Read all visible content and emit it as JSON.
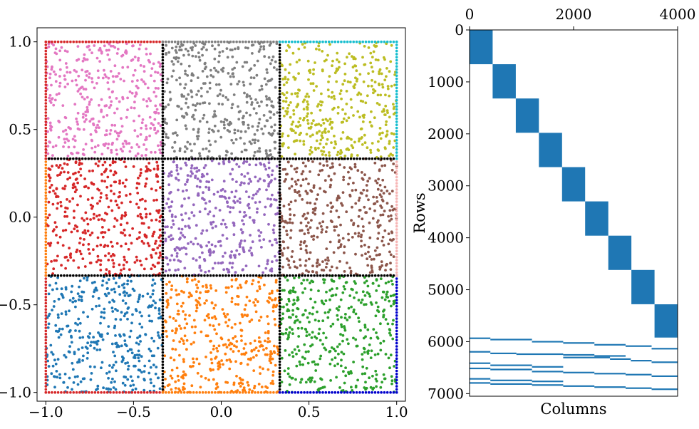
{
  "chart_data": [
    {
      "type": "scatter",
      "title": "",
      "xlabel": "",
      "ylabel": "",
      "xlim": [
        -1.05,
        1.05
      ],
      "ylim": [
        -1.05,
        1.08
      ],
      "x_ticks": [
        -1.0,
        -0.5,
        0.0,
        0.5,
        1.0
      ],
      "x_tick_labels": [
        "−1.0",
        "−0.5",
        "0.0",
        "0.5",
        "1.0"
      ],
      "y_ticks": [
        -1.0,
        -0.5,
        0.0,
        0.5,
        1.0
      ],
      "y_tick_labels": [
        "−1.0",
        "−0.5",
        "0.0",
        "0.5",
        "1.0"
      ],
      "grid": false,
      "subdomain_boundaries": [
        -0.3333,
        0.3333
      ],
      "points_per_subdomain": 400,
      "interface_color": "#000000",
      "subdomains": [
        {
          "name": "bottom-left",
          "x": [
            -1.0,
            -0.3333
          ],
          "y": [
            -1.0,
            -0.3333
          ],
          "color": "#1f77b4"
        },
        {
          "name": "bottom-center",
          "x": [
            -0.3333,
            0.3333
          ],
          "y": [
            -1.0,
            -0.3333
          ],
          "color": "#ff7f0e"
        },
        {
          "name": "bottom-right",
          "x": [
            0.3333,
            1.0
          ],
          "y": [
            -1.0,
            -0.3333
          ],
          "color": "#2ca02c"
        },
        {
          "name": "middle-left",
          "x": [
            -1.0,
            -0.3333
          ],
          "y": [
            -0.3333,
            0.3333
          ],
          "color": "#d62728"
        },
        {
          "name": "middle-center",
          "x": [
            -0.3333,
            0.3333
          ],
          "y": [
            -0.3333,
            0.3333
          ],
          "color": "#9467bd"
        },
        {
          "name": "middle-right",
          "x": [
            0.3333,
            1.0
          ],
          "y": [
            -0.3333,
            0.3333
          ],
          "color": "#8c564b"
        },
        {
          "name": "top-left",
          "x": [
            -1.0,
            -0.3333
          ],
          "y": [
            0.3333,
            1.0
          ],
          "color": "#e377c2"
        },
        {
          "name": "top-center",
          "x": [
            -0.3333,
            0.3333
          ],
          "y": [
            0.3333,
            1.0
          ],
          "color": "#7f7f7f"
        },
        {
          "name": "top-right",
          "x": [
            0.3333,
            1.0
          ],
          "y": [
            0.3333,
            1.0
          ],
          "color": "#bcbd22"
        }
      ],
      "boundary_segments": [
        {
          "edge": "bottom",
          "range": [
            -1.0,
            -0.3333
          ],
          "color": "#d62728"
        },
        {
          "edge": "bottom",
          "range": [
            -0.3333,
            0.3333
          ],
          "color": "#ff7f0e"
        },
        {
          "edge": "bottom",
          "range": [
            0.3333,
            1.0
          ],
          "color": "#0000cc"
        },
        {
          "edge": "top",
          "range": [
            -1.0,
            -0.3333
          ],
          "color": "#d62728"
        },
        {
          "edge": "top",
          "range": [
            -0.3333,
            0.3333
          ],
          "color": "#7f7f7f"
        },
        {
          "edge": "top",
          "range": [
            0.3333,
            1.0
          ],
          "color": "#17becf"
        },
        {
          "edge": "left",
          "range": [
            -1.0,
            -0.3333
          ],
          "color": "#d62728"
        },
        {
          "edge": "left",
          "range": [
            -0.3333,
            0.3333
          ],
          "color": "#ff7f0e"
        },
        {
          "edge": "left",
          "range": [
            0.3333,
            1.0
          ],
          "color": "#d62728"
        },
        {
          "edge": "right",
          "range": [
            -1.0,
            -0.3333
          ],
          "color": "#0000cc"
        },
        {
          "edge": "right",
          "range": [
            -0.3333,
            0.3333
          ],
          "color": "#f7b6b6"
        },
        {
          "edge": "right",
          "range": [
            0.3333,
            1.0
          ],
          "color": "#17becf"
        }
      ]
    },
    {
      "type": "heatmap",
      "subtype": "sparsity-pattern",
      "title": "",
      "xlabel": "Columns",
      "ylabel": "Rows",
      "xlim": [
        0,
        4000
      ],
      "ylim": [
        7050,
        0
      ],
      "x_ticks": [
        0,
        2000,
        4000
      ],
      "x_tick_labels": [
        "0",
        "2000",
        "4000"
      ],
      "y_ticks": [
        0,
        1000,
        2000,
        3000,
        4000,
        5000,
        6000,
        7000
      ],
      "y_tick_labels": [
        "0",
        "1000",
        "2000",
        "3000",
        "4000",
        "5000",
        "6000",
        "7000"
      ],
      "color": "#1f77b4",
      "diagonal_blocks": [
        {
          "rows": [
            0,
            660
          ],
          "cols": [
            0,
            444
          ]
        },
        {
          "rows": [
            660,
            1320
          ],
          "cols": [
            444,
            889
          ]
        },
        {
          "rows": [
            1320,
            1980
          ],
          "cols": [
            889,
            1333
          ]
        },
        {
          "rows": [
            1980,
            2640
          ],
          "cols": [
            1333,
            1778
          ]
        },
        {
          "rows": [
            2640,
            3300
          ],
          "cols": [
            1778,
            2222
          ]
        },
        {
          "rows": [
            3300,
            3960
          ],
          "cols": [
            2222,
            2667
          ]
        },
        {
          "rows": [
            3960,
            4620
          ],
          "cols": [
            2667,
            3111
          ]
        },
        {
          "rows": [
            4620,
            5280
          ],
          "cols": [
            3111,
            3556
          ]
        },
        {
          "rows": [
            5280,
            5920
          ],
          "cols": [
            3556,
            4000
          ]
        }
      ],
      "interface_row_bands": [
        {
          "rows": [
            5920,
            5950
          ],
          "cols": [
            0,
            400
          ]
        },
        {
          "rows": [
            5945,
            5975
          ],
          "cols": [
            400,
            1200
          ]
        },
        {
          "rows": [
            5985,
            6015
          ],
          "cols": [
            1200,
            1800
          ]
        },
        {
          "rows": [
            6010,
            6040
          ],
          "cols": [
            1800,
            2400
          ]
        },
        {
          "rows": [
            6045,
            6075
          ],
          "cols": [
            2400,
            3000
          ]
        },
        {
          "rows": [
            6070,
            6100
          ],
          "cols": [
            3000,
            3500
          ]
        },
        {
          "rows": [
            6120,
            6150
          ],
          "cols": [
            3500,
            4000
          ]
        },
        {
          "rows": [
            6180,
            6210
          ],
          "cols": [
            0,
            400
          ]
        },
        {
          "rows": [
            6210,
            6240
          ],
          "cols": [
            400,
            900
          ]
        },
        {
          "rows": [
            6225,
            6255
          ],
          "cols": [
            900,
            1800
          ]
        },
        {
          "rows": [
            6240,
            6270
          ],
          "cols": [
            1800,
            2400
          ]
        },
        {
          "rows": [
            6260,
            6290
          ],
          "cols": [
            2400,
            3000
          ]
        },
        {
          "rows": [
            6320,
            6350
          ],
          "cols": [
            2700,
            3100
          ]
        },
        {
          "rows": [
            6350,
            6380
          ],
          "cols": [
            3100,
            3500
          ]
        },
        {
          "rows": [
            6380,
            6410
          ],
          "cols": [
            3500,
            4000
          ]
        },
        {
          "rows": [
            6290,
            6320
          ],
          "cols": [
            1800,
            2700
          ]
        },
        {
          "rows": [
            6400,
            6430
          ],
          "cols": [
            0,
            400
          ]
        },
        {
          "rows": [
            6440,
            6470
          ],
          "cols": [
            400,
            1200
          ]
        },
        {
          "rows": [
            6470,
            6500
          ],
          "cols": [
            1200,
            1800
          ]
        },
        {
          "rows": [
            6500,
            6530
          ],
          "cols": [
            0,
            400
          ]
        },
        {
          "rows": [
            6520,
            6550
          ],
          "cols": [
            400,
            1200
          ]
        },
        {
          "rows": [
            6560,
            6590
          ],
          "cols": [
            1200,
            1800
          ]
        },
        {
          "rows": [
            6580,
            6610
          ],
          "cols": [
            1800,
            2400
          ]
        },
        {
          "rows": [
            6600,
            6630
          ],
          "cols": [
            2400,
            3000
          ]
        },
        {
          "rows": [
            6620,
            6650
          ],
          "cols": [
            3000,
            3500
          ]
        },
        {
          "rows": [
            6650,
            6680
          ],
          "cols": [
            3500,
            4000
          ]
        },
        {
          "rows": [
            6700,
            6730
          ],
          "cols": [
            0,
            400
          ]
        },
        {
          "rows": [
            6730,
            6760
          ],
          "cols": [
            400,
            1200
          ]
        },
        {
          "rows": [
            6750,
            6780
          ],
          "cols": [
            1200,
            1800
          ]
        },
        {
          "rows": [
            6780,
            6810
          ],
          "cols": [
            0,
            400
          ]
        },
        {
          "rows": [
            6800,
            6830
          ],
          "cols": [
            400,
            1200
          ]
        },
        {
          "rows": [
            6820,
            6850
          ],
          "cols": [
            1200,
            1800
          ]
        },
        {
          "rows": [
            6840,
            6870
          ],
          "cols": [
            1800,
            2400
          ]
        },
        {
          "rows": [
            6860,
            6890
          ],
          "cols": [
            2400,
            3000
          ]
        },
        {
          "rows": [
            6880,
            6910
          ],
          "cols": [
            3000,
            3500
          ]
        },
        {
          "rows": [
            6900,
            6930
          ],
          "cols": [
            3500,
            4000
          ]
        }
      ]
    }
  ]
}
